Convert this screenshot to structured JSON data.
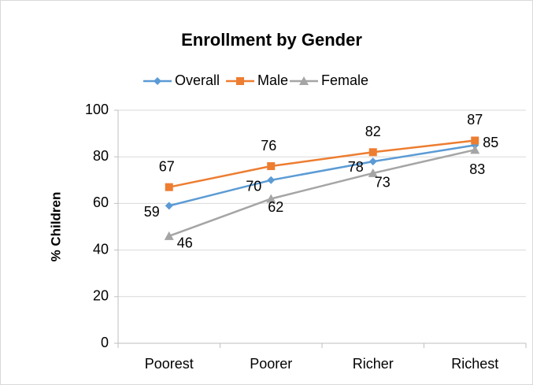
{
  "chart_data": {
    "type": "line",
    "title": "Enrollment by Gender",
    "y_label": "% Children",
    "categories": [
      "Poorest",
      "Poorer",
      "Richer",
      "Richest"
    ],
    "series": [
      {
        "name": "Overall",
        "color": "#5b9bd5",
        "marker": "diamond",
        "values": [
          59,
          70,
          78,
          85
        ]
      },
      {
        "name": "Male",
        "color": "#ed7d31",
        "marker": "square",
        "values": [
          67,
          76,
          82,
          87
        ]
      },
      {
        "name": "Female",
        "color": "#a5a5a5",
        "marker": "triangle",
        "values": [
          46,
          62,
          73,
          83
        ]
      }
    ],
    "ylim": [
      0,
      100
    ],
    "yticks": [
      0,
      20,
      40,
      60,
      80,
      100
    ],
    "grid": true,
    "legend": "top"
  }
}
